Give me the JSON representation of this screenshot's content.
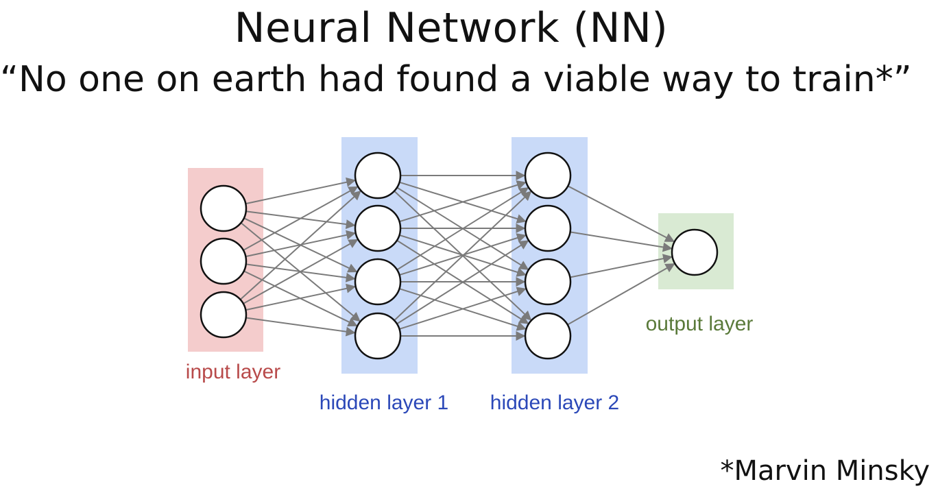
{
  "title": "Neural Network (NN)",
  "subtitle": "“No one on earth had found a viable way to train*”",
  "credit": "*Marvin Minsky",
  "diagram": {
    "layers": [
      {
        "name": "input",
        "label": "input layer",
        "nodes": 3,
        "fill": "#f4cccc",
        "text_color": "#b84a4a"
      },
      {
        "name": "hidden1",
        "label": "hidden layer 1",
        "nodes": 4,
        "fill": "#c9daf8",
        "text_color": "#2b48b8"
      },
      {
        "name": "hidden2",
        "label": "hidden layer 2",
        "nodes": 4,
        "fill": "#c9daf8",
        "text_color": "#2b48b8"
      },
      {
        "name": "output",
        "label": "output layer",
        "nodes": 1,
        "fill": "#d9ead3",
        "text_color": "#5a7a3a"
      }
    ],
    "connection_color": "#7a7a7a",
    "node_stroke": "#111111",
    "node_fill": "#ffffff",
    "connectivity": "fully-connected"
  }
}
